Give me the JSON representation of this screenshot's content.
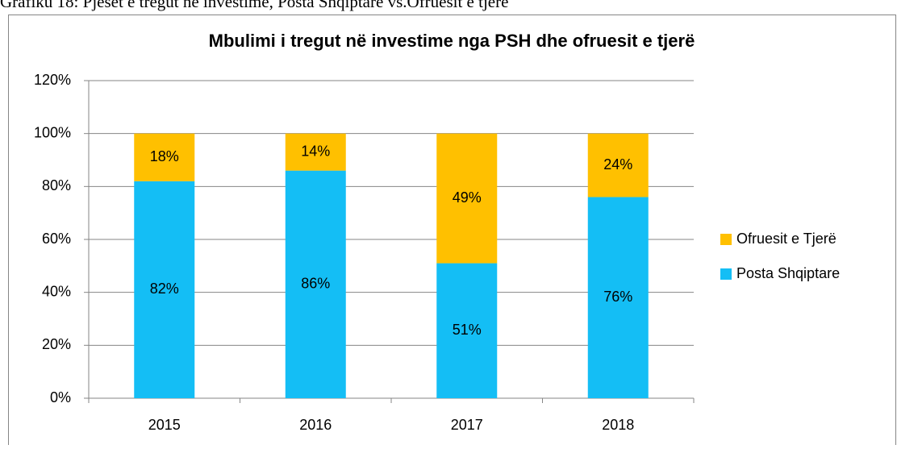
{
  "caption": "Grafiku 18: Pjesët e tregut në investime, Posta Shqiptare vs.Ofruesit e tjerë",
  "chart_data": {
    "type": "stacked_bar",
    "title": "Mbulimi i tregut në investime nga PSH dhe ofruesit e tjerë",
    "categories": [
      "2015",
      "2016",
      "2017",
      "2018"
    ],
    "series": [
      {
        "name": "Posta Shqiptare",
        "color": "#14bef5",
        "values": [
          82,
          86,
          51,
          76
        ],
        "value_labels": [
          "82%",
          "86%",
          "51%",
          "76%"
        ]
      },
      {
        "name": "Ofruesit e Tjerë",
        "color": "#ffc000",
        "values": [
          18,
          14,
          49,
          24
        ],
        "value_labels": [
          "18%",
          "14%",
          "49%",
          "24%"
        ]
      }
    ],
    "ylim": [
      0,
      120
    ],
    "yticks": [
      {
        "value": 0,
        "label": "0%"
      },
      {
        "value": 20,
        "label": "20%"
      },
      {
        "value": 40,
        "label": "40%"
      },
      {
        "value": 60,
        "label": "60%"
      },
      {
        "value": 80,
        "label": "80%"
      },
      {
        "value": 100,
        "label": "100%"
      },
      {
        "value": 120,
        "label": "120%"
      }
    ],
    "grid": true,
    "legend": "right"
  }
}
